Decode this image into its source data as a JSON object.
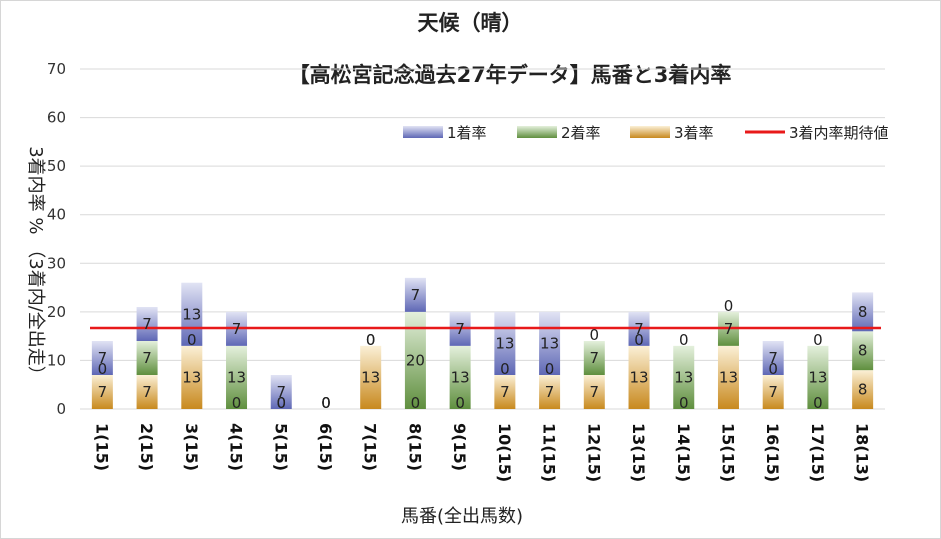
{
  "chart_data": {
    "type": "bar",
    "stacked": true,
    "title": "天候（晴）",
    "subtitle": "【高松宮記念過去27年データ】馬番と3着内率",
    "xlabel": "馬番(全出馬数)",
    "ylabel_parts": [
      "3着内率 %",
      "（3着内/全出走）"
    ],
    "ylim": [
      0,
      70
    ],
    "yticks": [
      "0",
      "10",
      "20",
      "30",
      "40",
      "50",
      "60",
      "70"
    ],
    "grid": true,
    "legend_position": "top-right",
    "categories": [
      "1(15)",
      "2(15)",
      "3(15)",
      "4(15)",
      "5(15)",
      "6(15)",
      "7(15)",
      "8(15)",
      "9(15)",
      "10(15)",
      "11(15)",
      "12(15)",
      "13(15)",
      "14(15)",
      "15(15)",
      "16(15)",
      "17(15)",
      "18(13)"
    ],
    "series": [
      {
        "name": "3着率",
        "color": "#d9a23a",
        "values": [
          7,
          7,
          13,
          0,
          0,
          0,
          13,
          0,
          0,
          7,
          7,
          7,
          13,
          0,
          13,
          7,
          0,
          8
        ]
      },
      {
        "name": "2着率",
        "color": "#6aa84f",
        "values": [
          0,
          7,
          0,
          13,
          0,
          0,
          0,
          20,
          13,
          0,
          0,
          7,
          0,
          13,
          7,
          0,
          13,
          8
        ]
      },
      {
        "name": "1着率",
        "color": "#6b74c0",
        "values": [
          7,
          7,
          13,
          7,
          7,
          0,
          0,
          7,
          7,
          13,
          13,
          0,
          7,
          0,
          0,
          7,
          0,
          8
        ]
      }
    ],
    "labels": [
      [
        "7",
        "0",
        "7"
      ],
      [
        "7",
        "7",
        "7"
      ],
      [
        "13",
        "0",
        "13"
      ],
      [
        "0",
        "13",
        "7"
      ],
      [
        "0",
        "0",
        "7"
      ],
      [
        "0",
        "0",
        "0"
      ],
      [
        "13",
        "0",
        "0"
      ],
      [
        "0",
        "20",
        "7"
      ],
      [
        "0",
        "13",
        "7"
      ],
      [
        "7",
        "0",
        "13"
      ],
      [
        "7",
        "0",
        "13"
      ],
      [
        "7",
        "7",
        "0"
      ],
      [
        "13",
        "0",
        "7"
      ],
      [
        "0",
        "13",
        "0"
      ],
      [
        "13",
        "7",
        "0"
      ],
      [
        "7",
        "0",
        "7"
      ],
      [
        "0",
        "13",
        "0"
      ],
      [
        "8",
        "8",
        "8"
      ]
    ],
    "reference_line": {
      "name": "3着内率期待値",
      "value": 16.67,
      "color": "#e8191a"
    }
  }
}
